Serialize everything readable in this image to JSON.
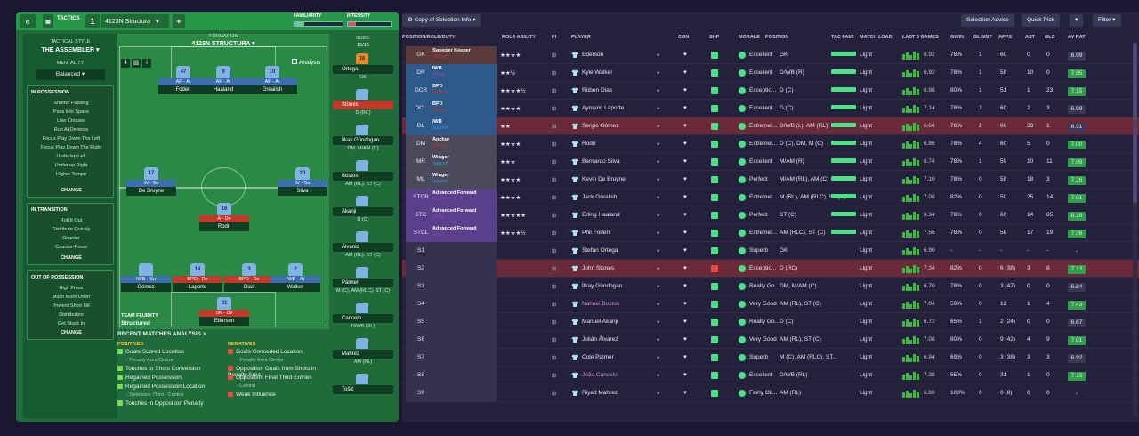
{
  "topbar": {
    "back": "«",
    "tactics_label": "TACTICS",
    "tactic_number": "1",
    "tactic_name": "4123N Structura",
    "add": "+",
    "familiarity": "FAMILIARITY",
    "intensity": "INTENSITY"
  },
  "side": {
    "style_label": "TACTICAL STYLE",
    "style": "THE ASSEMBLER",
    "mentality_label": "MENTALITY",
    "mentality": "Balanced",
    "in_possession": {
      "title": "IN POSSESSION",
      "items": [
        "Shorter Passing",
        "Pass Into Space",
        "Low Crosses",
        "Run At Defence",
        "Focus Play Down The Left",
        "Focus Play Down The Right",
        "Underlap Left",
        "Underlap Right",
        "Higher Tempo"
      ],
      "change": "CHANGE"
    },
    "in_transition": {
      "title": "IN TRANSITION",
      "items": [
        "Roll It Out",
        "Distribute Quickly",
        "Counter",
        "Counter-Press"
      ],
      "change": "CHANGE"
    },
    "out_of_possession": {
      "title": "OUT OF POSSESSION",
      "items": [
        "High Press",
        "Much More Often",
        "Prevent Short GK",
        "Distribution",
        "Get Stuck In"
      ],
      "change": "CHANGE"
    }
  },
  "pitch": {
    "formation_label": "FORMATION",
    "formation": "4123N STRUCTURA",
    "analysis": "Analysis",
    "fluidity_label": "TEAM FLUIDITY",
    "fluidity": "Structured",
    "players": [
      {
        "num": "47",
        "role": "AF - At",
        "name": "Foden"
      },
      {
        "num": "9",
        "role": "AF - At",
        "name": "Haaland"
      },
      {
        "num": "10",
        "role": "AF - At",
        "name": "Grealish"
      },
      {
        "num": "17",
        "role": "W - Su",
        "name": "De Bruyne"
      },
      {
        "num": "20",
        "role": "W - Su",
        "name": "Silva"
      },
      {
        "num": "16",
        "role": "A - De",
        "name": "Rodri"
      },
      {
        "num": "",
        "role": "IWB - Su",
        "name": "Gómez"
      },
      {
        "num": "14",
        "role": "BPD - De",
        "name": "Laporte"
      },
      {
        "num": "3",
        "role": "BPD - De",
        "name": "Dias"
      },
      {
        "num": "2",
        "role": "IWB - At",
        "name": "Walker"
      },
      {
        "num": "31",
        "role": "SK - De",
        "name": "Ederson"
      }
    ]
  },
  "subs": {
    "label": "SUBS:",
    "count": "15/15",
    "players": [
      {
        "num": "18",
        "name": "Ortega",
        "pos": "GK"
      },
      {
        "num": "",
        "name": "Stones",
        "pos": "D (RC)"
      },
      {
        "num": "",
        "name": "İlkay Gündogan",
        "pos": "DM, M/AM (C)"
      },
      {
        "num": "",
        "name": "Bustos",
        "pos": "AM (RL), ST (C)"
      },
      {
        "num": "",
        "name": "Akanji",
        "pos": "D (C)"
      },
      {
        "num": "",
        "name": "Álvarez",
        "pos": "AM (RL), ST (C)"
      },
      {
        "num": "",
        "name": "Palmer",
        "pos": "M (C), AM (RLC), ST (C)"
      },
      {
        "num": "",
        "name": "Cancelo",
        "pos": "D/WB (RL)"
      },
      {
        "num": "",
        "name": "Mahrez",
        "pos": "AM (RL)"
      },
      {
        "num": "",
        "name": "Tošić",
        "pos": ""
      }
    ]
  },
  "analysis": {
    "title": "RECENT MATCHES ANALYSIS >",
    "positives_label": "POSITIVES",
    "negatives_label": "NEGATIVES",
    "positives": [
      {
        "t": "Goals Scored Location",
        "s": "- Penalty Area Centre"
      },
      {
        "t": "Touches to Shots Conversion",
        "s": ""
      },
      {
        "t": "Regained Possession",
        "s": ""
      },
      {
        "t": "Regained Possession Location",
        "s": "- Defensive Third - Central"
      },
      {
        "t": "Touches in Opposition Penalty",
        "s": ""
      }
    ],
    "negatives": [
      {
        "t": "Goals Conceded Location",
        "s": "- Penalty Area Centre"
      },
      {
        "t": "Opposition Goals from Shots in Penalty Area",
        "s": ""
      },
      {
        "t": "Opposition Final Third Entries",
        "s": "- Central"
      },
      {
        "t": "Weak Influence",
        "s": ""
      }
    ]
  },
  "toolbar": {
    "view": "Copy of Selection Info",
    "selection_advice": "Selection Advice",
    "quick_pick": "Quick Pick",
    "filter": "Filter"
  },
  "columns": [
    "POSITION/ROLE/DUTY",
    "ROLE ABILITY",
    "PI",
    "PLAYER",
    "CON",
    "SHP",
    "MORALE",
    "POSITION",
    "TAC FAMI",
    "MATCH LOAD",
    "LAST 5 GAMES",
    "GWIN",
    "GL MST",
    "APPS",
    "AST",
    "GLS",
    "AV RAT"
  ],
  "rows": [
    {
      "pos": "GK",
      "role": "Sweeper Keeper",
      "duty": "Defend",
      "stars": "★★★★",
      "player": "Ederson",
      "morale": "Excellent",
      "position": "GK",
      "load": "Light",
      "l5": "6.92",
      "gwin": "78%",
      "glmst": "1",
      "apps": "60",
      "ast": "0",
      "gls": "0",
      "avrat": "6.99"
    },
    {
      "pos": "DR",
      "role": "IWB",
      "duty": "Attack",
      "stars": "★★½",
      "player": "Kyle Walker",
      "morale": "Excellent",
      "position": "D/WB (R)",
      "load": "Light",
      "l5": "6.92",
      "gwin": "78%",
      "glmst": "1",
      "apps": "58",
      "ast": "10",
      "gls": "0",
      "avrat": "7.05"
    },
    {
      "pos": "DCR",
      "role": "BPD",
      "duty": "Defend",
      "stars": "★★★★½",
      "player": "Rúben Dias",
      "morale": "Exceptio...",
      "position": "D (C)",
      "load": "Light",
      "l5": "6.98",
      "gwin": "80%",
      "glmst": "1",
      "apps": "51",
      "ast": "1",
      "gls": "23",
      "avrat": "7.15"
    },
    {
      "pos": "DCL",
      "role": "BPD",
      "duty": "Defend",
      "stars": "★★★★",
      "player": "Aymeric Laporte",
      "morale": "Excellent",
      "position": "D (C)",
      "load": "Light",
      "l5": "7.14",
      "gwin": "78%",
      "glmst": "3",
      "apps": "60",
      "ast": "2",
      "gls": "3",
      "avrat": "6.99"
    },
    {
      "pos": "DL",
      "role": "IWB",
      "duty": "Support",
      "stars": "★★",
      "player": "Sergio Gómez",
      "morale": "Extremel...",
      "position": "D/WB (L), AM (RL)",
      "load": "Light",
      "l5": "6.84",
      "gwin": "78%",
      "glmst": "2",
      "apps": "60",
      "ast": "33",
      "gls": "1",
      "avrat": "6.91"
    },
    {
      "pos": "DM",
      "role": "Anchor",
      "duty": "Defend",
      "stars": "★★★★",
      "player": "Rodri",
      "morale": "Extremel...",
      "position": "D (C), DM, M (C)",
      "load": "Light",
      "l5": "6.86",
      "gwin": "78%",
      "glmst": "4",
      "apps": "60",
      "ast": "5",
      "gls": "0",
      "avrat": "7.00"
    },
    {
      "pos": "MR",
      "role": "Winger",
      "duty": "Support",
      "stars": "★★★",
      "player": "Bernardo Silva",
      "morale": "Excellent",
      "position": "M/AM (R)",
      "load": "Light",
      "l5": "6.74",
      "gwin": "78%",
      "glmst": "1",
      "apps": "59",
      "ast": "10",
      "gls": "11",
      "avrat": "7.09"
    },
    {
      "pos": "ML",
      "role": "Winger",
      "duty": "Support",
      "stars": "★★★★",
      "player": "Kevin De Bruyne",
      "morale": "Perfect",
      "position": "M/AM (RL), AM (C)",
      "load": "Light",
      "l5": "7.10",
      "gwin": "78%",
      "glmst": "0",
      "apps": "58",
      "ast": "18",
      "gls": "3",
      "avrat": "7.26"
    },
    {
      "pos": "STCR",
      "role": "Advanced Forward",
      "duty": "Attack",
      "stars": "★★★★",
      "player": "Jack Grealish",
      "morale": "Extremel...",
      "position": "M (RL), AM (RLC), ST (C)",
      "load": "Light",
      "l5": "7.08",
      "gwin": "82%",
      "glmst": "0",
      "apps": "50",
      "ast": "25",
      "gls": "14",
      "avrat": "7.01"
    },
    {
      "pos": "STC",
      "role": "Advanced Forward",
      "duty": "Attack",
      "stars": "★★★★★",
      "player": "Erling Haaland",
      "morale": "Perfect",
      "position": "ST (C)",
      "load": "Light",
      "l5": "8.34",
      "gwin": "78%",
      "glmst": "0",
      "apps": "60",
      "ast": "14",
      "gls": "85",
      "avrat": "8.19"
    },
    {
      "pos": "STCL",
      "role": "Advanced Forward",
      "duty": "Attack",
      "stars": "★★★★½",
      "player": "Phil Foden",
      "morale": "Extremel...",
      "position": "AM (RLC), ST (C)",
      "load": "Light",
      "l5": "7.56",
      "gwin": "78%",
      "glmst": "0",
      "apps": "58",
      "ast": "17",
      "gls": "19",
      "avrat": "7.36"
    },
    {
      "pos": "S1",
      "role": "",
      "duty": "",
      "stars": "",
      "player": "Stefan Ortega",
      "morale": "Superb",
      "position": "GK",
      "load": "Light",
      "l5": "6.90",
      "gwin": "-",
      "glmst": "-",
      "apps": "-",
      "ast": "-",
      "gls": "-",
      "avrat": "-"
    },
    {
      "pos": "S2",
      "role": "",
      "duty": "",
      "stars": "",
      "player": "John Stones",
      "morale": "Exceptio...",
      "position": "D (RC)",
      "load": "Light",
      "l5": "7.34",
      "gwin": "82%",
      "glmst": "0",
      "apps": "6 (38)",
      "ast": "3",
      "gls": "8",
      "avrat": "7.13"
    },
    {
      "pos": "S3",
      "role": "",
      "duty": "",
      "stars": "",
      "player": "İlkay Gündogan",
      "morale": "Really Go...",
      "position": "DM, M/AM (C)",
      "load": "Light",
      "l5": "6.70",
      "gwin": "78%",
      "glmst": "0",
      "apps": "3 (47)",
      "ast": "0",
      "gls": "0",
      "avrat": "6.84"
    },
    {
      "pos": "S4",
      "role": "",
      "duty": "",
      "stars": "",
      "player": "Nahuel Bustos",
      "morale": "Very Good",
      "position": "AM (RL), ST (C)",
      "load": "Light",
      "l5": "7.04",
      "gwin": "50%",
      "glmst": "0",
      "apps": "12",
      "ast": "1",
      "gls": "4",
      "avrat": "7.43"
    },
    {
      "pos": "S5",
      "role": "",
      "duty": "",
      "stars": "",
      "player": "Manuel Akanji",
      "morale": "Really Go...",
      "position": "D (C)",
      "load": "Light",
      "l5": "6.72",
      "gwin": "65%",
      "glmst": "1",
      "apps": "2 (24)",
      "ast": "0",
      "gls": "0",
      "avrat": "6.67"
    },
    {
      "pos": "S6",
      "role": "",
      "duty": "",
      "stars": "",
      "player": "Julián Álvarez",
      "morale": "Very Good",
      "position": "AM (RL), ST (C)",
      "load": "Light",
      "l5": "7.08",
      "gwin": "80%",
      "glmst": "0",
      "apps": "9 (42)",
      "ast": "4",
      "gls": "9",
      "avrat": "7.01"
    },
    {
      "pos": "S7",
      "role": "",
      "duty": "",
      "stars": "",
      "player": "Cole Palmer",
      "morale": "Superb",
      "position": "M (C), AM (RLC), ST...",
      "load": "Light",
      "l5": "6.94",
      "gwin": "69%",
      "glmst": "0",
      "apps": "3 (38)",
      "ast": "3",
      "gls": "3",
      "avrat": "6.92"
    },
    {
      "pos": "S8",
      "role": "",
      "duty": "",
      "stars": "",
      "player": "João Cancelo",
      "morale": "Excellent",
      "position": "D/WB (RL)",
      "load": "Light",
      "l5": "7.38",
      "gwin": "65%",
      "glmst": "0",
      "apps": "31",
      "ast": "1",
      "gls": "0",
      "avrat": "7.19"
    },
    {
      "pos": "S9",
      "role": "",
      "duty": "",
      "stars": "",
      "player": "Riyad Mahrez",
      "morale": "Fairly Ok...",
      "position": "AM (RL)",
      "load": "Light",
      "l5": "6.80",
      "gwin": "100%",
      "glmst": "0",
      "apps": "0 (8)",
      "ast": "0",
      "gls": "0",
      "avrat": "-"
    }
  ]
}
